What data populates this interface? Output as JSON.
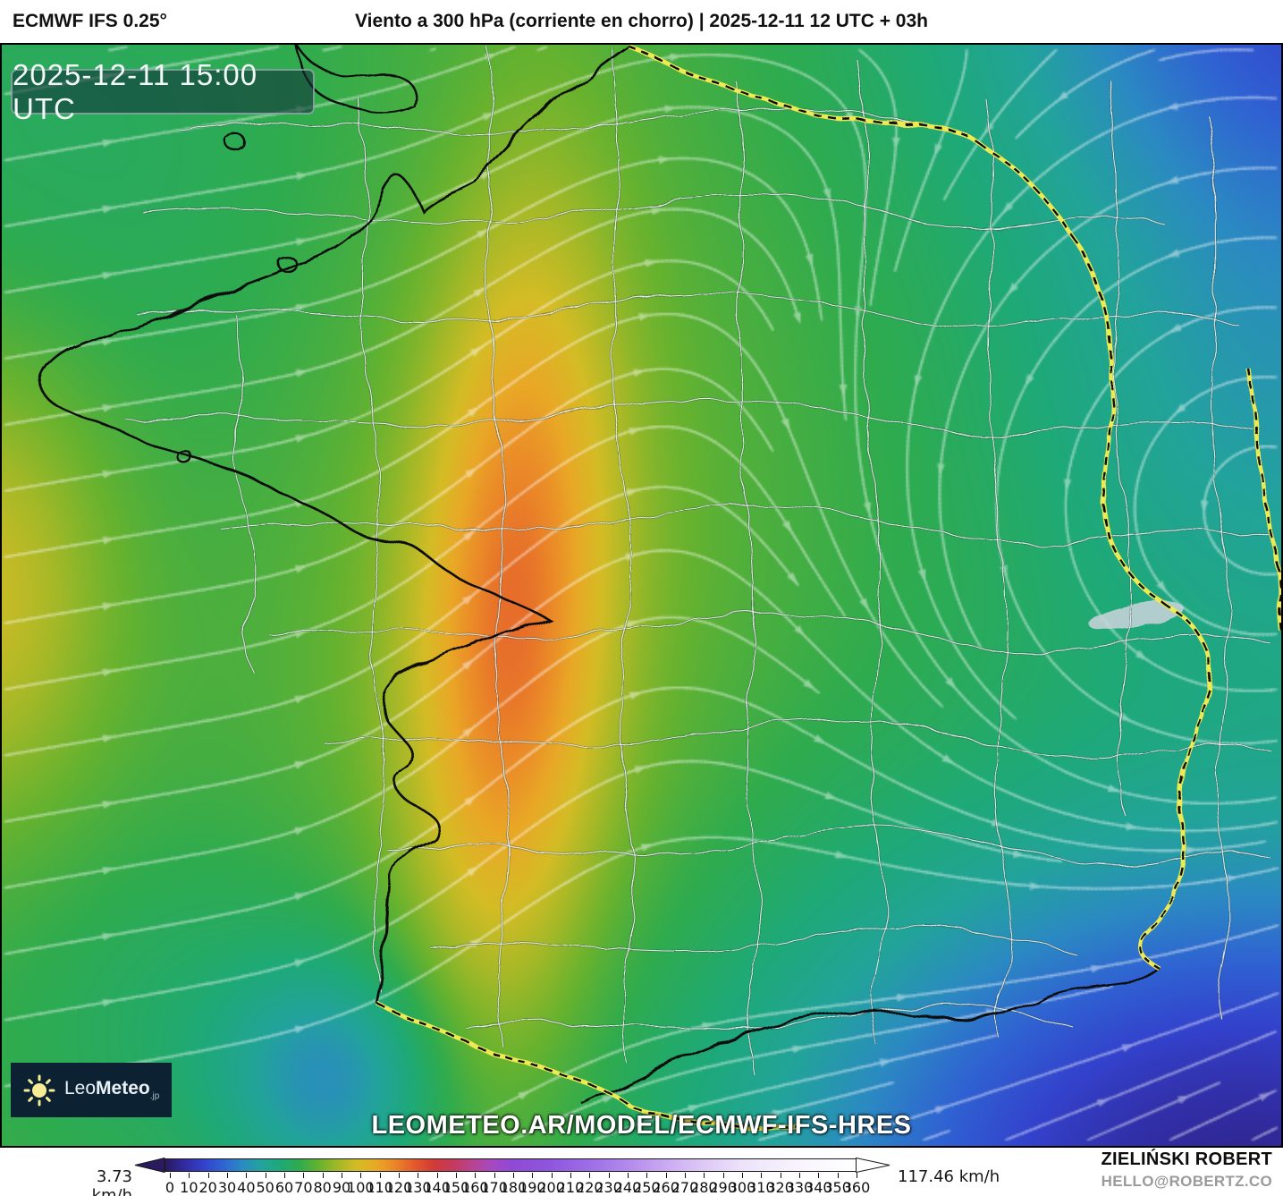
{
  "header": {
    "model": "ECMWF IFS 0.25°",
    "title": "Viento a 300 hPa (corriente en chorro) | 2025-12-11 12 UTC + 03h"
  },
  "map": {
    "valid_time": "2025-12-11 15:00 UTC",
    "watermark": "LEOMETEO.AR/MODEL/ECMWF-IFS-HRES",
    "logo": {
      "prefix": "Leo",
      "bold": "Meteo",
      "tld": ".jp",
      "icon": "sun-icon"
    },
    "layer": "wind speed at 300 hPa (jet stream) with streamlines over France"
  },
  "legend": {
    "min_label": "3.73 km/h",
    "max_label": "117.46 km/h",
    "unit": "km/h",
    "ticks": [
      0,
      10,
      20,
      30,
      40,
      50,
      60,
      70,
      80,
      90,
      100,
      110,
      120,
      130,
      140,
      150,
      160,
      170,
      180,
      190,
      200,
      210,
      220,
      230,
      240,
      250,
      260,
      270,
      280,
      290,
      300,
      310,
      320,
      330,
      340,
      350,
      360
    ],
    "stops": [
      [
        0,
        "#2a1a5e"
      ],
      [
        10,
        "#312ba0"
      ],
      [
        20,
        "#3342cc"
      ],
      [
        30,
        "#2f63d2"
      ],
      [
        40,
        "#2b8ac2"
      ],
      [
        50,
        "#22a39b"
      ],
      [
        60,
        "#1ea977"
      ],
      [
        70,
        "#2fab4e"
      ],
      [
        80,
        "#66b22f"
      ],
      [
        90,
        "#a3b827"
      ],
      [
        100,
        "#d4bc25"
      ],
      [
        110,
        "#e9a826"
      ],
      [
        120,
        "#ea8428"
      ],
      [
        130,
        "#e2592c"
      ],
      [
        140,
        "#d13a36"
      ],
      [
        150,
        "#c53a5e"
      ],
      [
        160,
        "#b84390"
      ],
      [
        170,
        "#a748c0"
      ],
      [
        180,
        "#9149d4"
      ],
      [
        200,
        "#8e55de"
      ],
      [
        220,
        "#9c6ce6"
      ],
      [
        240,
        "#b188ec"
      ],
      [
        260,
        "#c9a8f2"
      ],
      [
        280,
        "#ddc8f6"
      ],
      [
        300,
        "#ece2fa"
      ],
      [
        330,
        "#f8f4fd"
      ],
      [
        360,
        "#ffffff"
      ]
    ]
  },
  "attribution": {
    "author": "ZIELIŃSKI ROBERT",
    "email": "HELLO@ROBERTZ.CO"
  }
}
